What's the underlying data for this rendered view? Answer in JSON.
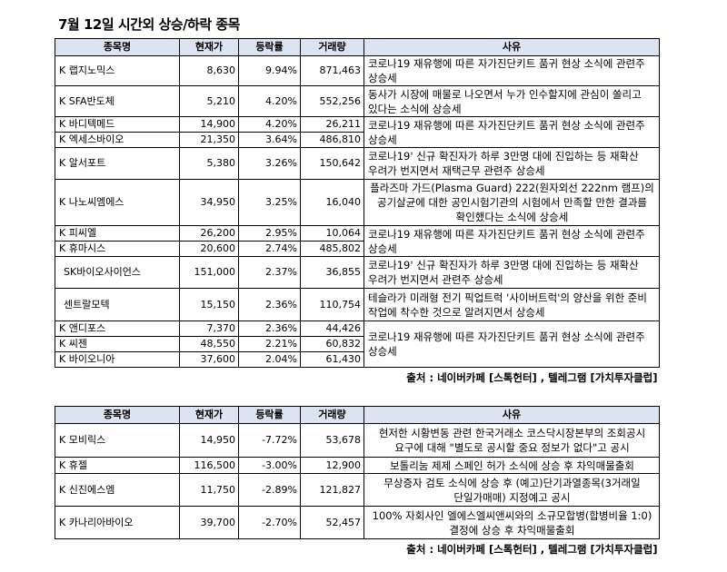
{
  "title": "7월 12일  시간외 상승/하락 종목",
  "headers": [
    "종목명",
    "현재가",
    "등락률",
    "거래량",
    "사유"
  ],
  "rising": [
    {
      "name": "K 랩지노믹스",
      "price": "8,630",
      "change": "9.94%",
      "volume": "871,463"
    },
    {
      "name": "K SFA반도체",
      "price": "5,210",
      "change": "4.20%",
      "volume": "552,256"
    },
    {
      "name": "K 바디텍메드",
      "price": "14,900",
      "change": "4.20%",
      "volume": "26,211"
    },
    {
      "name": "K 엑세스바이오",
      "price": "21,350",
      "change": "3.64%",
      "volume": "486,810"
    },
    {
      "name": "K 알서포트",
      "price": "5,380",
      "change": "3.26%",
      "volume": "150,642"
    },
    {
      "name": "K 나노씨엠에스",
      "price": "34,950",
      "change": "3.25%",
      "volume": "16,040"
    },
    {
      "name": "K 피씨엘",
      "price": "26,200",
      "change": "2.95%",
      "volume": "10,064"
    },
    {
      "name": "K 휴마시스",
      "price": "20,600",
      "change": "2.74%",
      "volume": "485,802"
    },
    {
      "name": "SK바이오사이언스",
      "price": "151,000",
      "change": "2.37%",
      "volume": "36,855"
    },
    {
      "name": "센트랄모텍",
      "price": "15,150",
      "change": "2.36%",
      "volume": "110,754"
    },
    {
      "name": "K 앤디포스",
      "price": "7,370",
      "change": "2.36%",
      "volume": "44,426"
    },
    {
      "name": "K 씨젠",
      "price": "48,550",
      "change": "2.21%",
      "volume": "60,832"
    },
    {
      "name": "K 바이오니아",
      "price": "37,600",
      "change": "2.04%",
      "volume": "61,430"
    }
  ],
  "rising_reasons": [
    "코로나19 재유행에 따른 자가진단키트 품귀 현상 소식에 관련주 상승세",
    "동사가 시장에 매물로 나오면서 누가 인수할지에 관심이 쏠리고 있다는 소식에 상승세",
    "코로나19 재유행에 따른 자가진단키트 품귀 현상 소식에 관련주 상승세",
    "코로나19' 신규 확진자가 하루 3만명 대에 진입하는 등 재확산 우려가 번지면서 재택근무 관련주 상승세",
    "플라즈마 가드(Plasma Guard) 222(원자외선 222nm 램프)의 공기살균에 대한 공인시험기관의 시험에서 만족할 만한 결과를 확인했다는 소식에 상승세",
    "코로나19 재유행에 따른 자가진단키트 품귀 현상 소식에 관련주 상승세",
    "코로나19' 신규 확진자가 하루 3만명 대에 진입하는 등 재확산 우려가 번지면서 관련주 상승세",
    "테슬라가 미래형 전기 픽업트럭 '사이버트럭'의 양산을 위한 준비 작업에 착수한 것으로 알려지면서 상승세",
    "코로나19 재유행에 따른 자가진단키트 품귀 현상 소식에 관련주 상승세"
  ],
  "falling": [
    {
      "name": "K 모비릭스",
      "price": "14,950",
      "change": "-7.72%",
      "volume": "53,678"
    },
    {
      "name": "K 휴젤",
      "price": "116,500",
      "change": "-3.00%",
      "volume": "12,900"
    },
    {
      "name": "K 신진에스엠",
      "price": "11,750",
      "change": "-2.89%",
      "volume": "121,827"
    },
    {
      "name": "K 카나리아바이오",
      "price": "39,700",
      "change": "-2.70%",
      "volume": "52,457"
    }
  ],
  "falling_reasons": [
    "현저한 시황변동 관련 한국거래소 코스닥시장본부의 조회공시 요구에 대해 \"별도로 공시할 중요 정보가 없다\"고 공시",
    "보톨리눔 제제 스페인 허가 소식에 상승 후 차익매물출회",
    "무상증자 검토 소식에 상승 후 (예고)단기과열종목(3거래일 단일가매매) 지정예고 공시",
    "100% 자회사인 엘에스엘씨앤씨와의 소규모합병(합병비율 1:0) 결정에 상승 후 차익매물출회"
  ],
  "source": "출처 : 네이버카페 [스톡헌터] , 텔레그램 [가치투자클럽]",
  "colors": {
    "header_bg": "#dbe5f1",
    "border": "#000000"
  }
}
